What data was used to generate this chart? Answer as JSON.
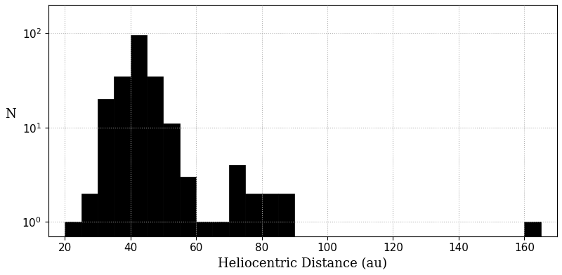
{
  "bin_edges": [
    20,
    25,
    30,
    35,
    40,
    45,
    50,
    55,
    60,
    65,
    70,
    75,
    80,
    85,
    90,
    160,
    165
  ],
  "counts": [
    1,
    2,
    20,
    35,
    95,
    35,
    11,
    3,
    1,
    1,
    4,
    2,
    2,
    2,
    0,
    1
  ],
  "bar_color": "#000000",
  "xlabel": "Heliocentric Distance (au)",
  "ylabel": "N",
  "xlim": [
    15,
    170
  ],
  "ylim": [
    0.7,
    200
  ],
  "xticks": [
    20,
    40,
    60,
    80,
    100,
    120,
    140,
    160
  ],
  "yticks": [
    1,
    10,
    100
  ],
  "background_color": "#ffffff",
  "grid_color": "#aaaaaa",
  "xlabel_fontsize": 13,
  "ylabel_fontsize": 13
}
